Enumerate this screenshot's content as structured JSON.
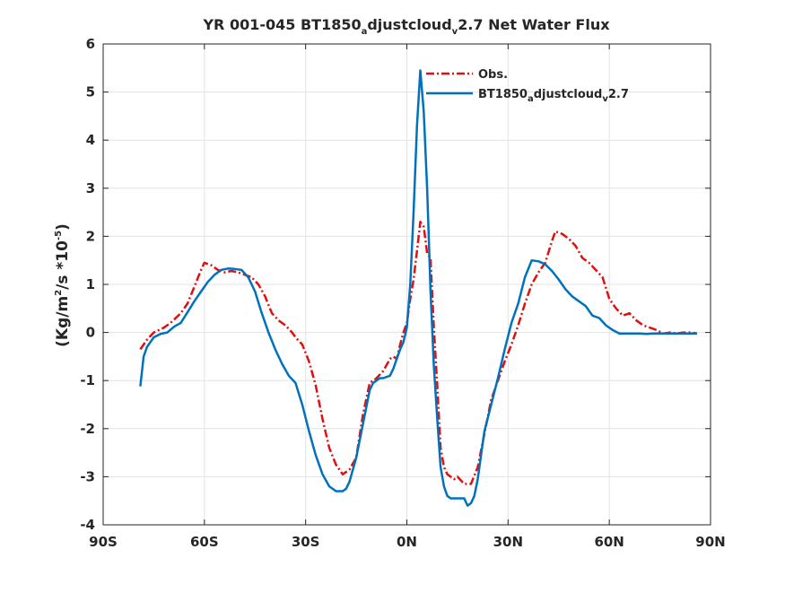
{
  "chart_data": {
    "type": "line",
    "title": {
      "pre": "YR 001-045 BT1850",
      "sub1": "a",
      "mid": "djustcloud",
      "sub2": "v",
      "post": "2.7  Net Water Flux"
    },
    "ylabel": {
      "pre": "(Kg/m",
      "sup1": "2",
      "mid": "/s *10",
      "sup2": "-5",
      "post": ")"
    },
    "xlabel": "",
    "xlim": [
      -90,
      90
    ],
    "ylim": [
      -4,
      6
    ],
    "xticks": [
      -90,
      -60,
      -30,
      0,
      30,
      60,
      90
    ],
    "xtick_labels": [
      "90S",
      "60S",
      "30S",
      "0N",
      "30N",
      "60N",
      "90N"
    ],
    "yticks": [
      -4,
      -3,
      -2,
      -1,
      0,
      1,
      2,
      3,
      4,
      5,
      6
    ],
    "ytick_labels": [
      "-4",
      "-3",
      "-2",
      "-1",
      "0",
      "1",
      "2",
      "3",
      "4",
      "5",
      "6"
    ],
    "grid": true,
    "legend_position": "top-right",
    "series": [
      {
        "name": "Obs.",
        "legend": {
          "pre": "Obs.",
          "sub1": "",
          "mid": "",
          "sub2": "",
          "post": ""
        },
        "color": "#e01010",
        "style": "dashdot",
        "x": [
          -79,
          -77,
          -75,
          -72,
          -70,
          -67,
          -65,
          -63,
          -61,
          -60,
          -58,
          -56,
          -54,
          -52,
          -50,
          -48,
          -46,
          -44,
          -42,
          -40,
          -38,
          -36,
          -34,
          -33,
          -31,
          -29,
          -27,
          -25,
          -23,
          -21,
          -19,
          -17,
          -15,
          -13,
          -11,
          -9,
          -7,
          -5,
          -4,
          -3,
          -2,
          -1,
          0,
          1,
          2,
          3,
          4,
          5,
          6,
          7,
          8,
          9,
          10,
          11,
          12,
          13,
          14,
          15,
          17,
          19,
          21,
          23,
          25,
          27,
          29,
          31,
          33,
          35,
          37,
          39,
          41,
          43,
          44,
          46,
          48,
          50,
          52,
          54,
          56,
          58,
          60,
          62,
          64,
          66,
          68,
          70,
          72,
          74,
          76,
          78,
          80,
          82,
          84,
          86
        ],
        "y": [
          -0.35,
          -0.15,
          0.0,
          0.1,
          0.2,
          0.4,
          0.6,
          0.95,
          1.3,
          1.45,
          1.4,
          1.3,
          1.25,
          1.28,
          1.25,
          1.2,
          1.15,
          1.0,
          0.75,
          0.4,
          0.25,
          0.15,
          0.0,
          -0.1,
          -0.25,
          -0.6,
          -1.1,
          -1.8,
          -2.4,
          -2.75,
          -2.95,
          -2.85,
          -2.6,
          -1.7,
          -1.05,
          -0.95,
          -0.8,
          -0.55,
          -0.5,
          -0.55,
          -0.25,
          0.0,
          0.2,
          0.7,
          1.1,
          1.7,
          2.3,
          2.2,
          1.65,
          1.55,
          0.1,
          -1.1,
          -2.4,
          -2.8,
          -2.95,
          -3.0,
          -3.05,
          -3.0,
          -3.15,
          -3.15,
          -2.8,
          -2.1,
          -1.4,
          -1.0,
          -0.6,
          -0.25,
          0.15,
          0.6,
          1.0,
          1.25,
          1.45,
          1.9,
          2.1,
          2.05,
          1.95,
          1.8,
          1.55,
          1.45,
          1.3,
          1.15,
          0.7,
          0.5,
          0.35,
          0.4,
          0.25,
          0.15,
          0.1,
          0.05,
          -0.02,
          0.0,
          -0.02,
          0.0,
          0.0,
          -0.02
        ]
      },
      {
        "name": "BT1850_adjustcloud_v2.7",
        "legend": {
          "pre": "BT1850",
          "sub1": "a",
          "mid": "djustcloud",
          "sub2": "v",
          "post": "2.7"
        },
        "color": "#0072bd",
        "style": "solid",
        "x": [
          -79,
          -78,
          -77,
          -75,
          -73,
          -71,
          -69,
          -67,
          -65,
          -63,
          -61,
          -59,
          -57,
          -55,
          -53,
          -51,
          -49,
          -47,
          -45,
          -43,
          -41,
          -39,
          -37,
          -35,
          -33,
          -31,
          -29,
          -27,
          -25,
          -23,
          -21,
          -19,
          -18,
          -17,
          -15,
          -13,
          -11,
          -10,
          -9,
          -8,
          -7,
          -5,
          -4,
          -3,
          -2,
          -1,
          0,
          1,
          2,
          3,
          4,
          5,
          6,
          6.5,
          7,
          7.5,
          8,
          9,
          10,
          11,
          12,
          13,
          14,
          15,
          16,
          17,
          18,
          19,
          20,
          21,
          22,
          23,
          25,
          27,
          29,
          31,
          33,
          35,
          37,
          39,
          41,
          43,
          45,
          47,
          49,
          51,
          53,
          55,
          57,
          59,
          61,
          63,
          65,
          67,
          69,
          71,
          73,
          75,
          77,
          79,
          81,
          83,
          85,
          86
        ],
        "y": [
          -1.12,
          -0.5,
          -0.3,
          -0.1,
          -0.03,
          0.0,
          0.12,
          0.2,
          0.42,
          0.65,
          0.85,
          1.05,
          1.2,
          1.3,
          1.33,
          1.32,
          1.3,
          1.15,
          0.85,
          0.4,
          0.0,
          -0.35,
          -0.65,
          -0.9,
          -1.05,
          -1.5,
          -2.05,
          -2.55,
          -2.95,
          -3.2,
          -3.3,
          -3.3,
          -3.25,
          -3.1,
          -2.6,
          -1.9,
          -1.2,
          -1.05,
          -1.0,
          -0.95,
          -0.95,
          -0.9,
          -0.75,
          -0.55,
          -0.35,
          -0.2,
          0.1,
          1.0,
          2.5,
          4.3,
          5.45,
          4.6,
          3.0,
          2.0,
          0.9,
          0.1,
          -0.7,
          -1.8,
          -2.8,
          -3.2,
          -3.4,
          -3.45,
          -3.45,
          -3.45,
          -3.45,
          -3.45,
          -3.6,
          -3.55,
          -3.4,
          -3.05,
          -2.55,
          -2.05,
          -1.5,
          -0.95,
          -0.35,
          0.2,
          0.6,
          1.15,
          1.5,
          1.48,
          1.42,
          1.28,
          1.1,
          0.9,
          0.75,
          0.65,
          0.55,
          0.35,
          0.3,
          0.15,
          0.05,
          -0.02,
          -0.02,
          -0.02,
          -0.02,
          -0.03,
          -0.02,
          -0.02,
          -0.02,
          -0.02,
          -0.02,
          -0.02,
          -0.02,
          -0.02
        ]
      }
    ]
  }
}
